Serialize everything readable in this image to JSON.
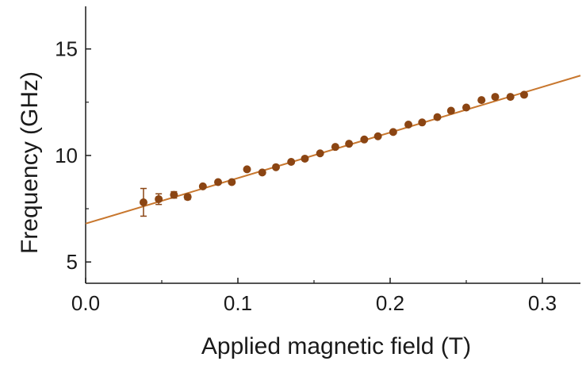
{
  "chart_data": {
    "type": "scatter",
    "xlabel": "Applied magnetic field (T)",
    "ylabel": "Frequency (GHz)",
    "xlim": [
      0.0,
      0.325
    ],
    "ylim": [
      4.0,
      17.0
    ],
    "xticks": [
      0.0,
      0.1,
      0.2,
      0.3
    ],
    "xtick_labels": [
      "0.0",
      "0.1",
      "0.2",
      "0.3"
    ],
    "yticks": [
      5,
      10,
      15
    ],
    "ytick_labels": [
      "5",
      "10",
      "15"
    ],
    "grid": false,
    "legend": "none",
    "colors": {
      "points": "#8b4513",
      "fit": "#c8772e",
      "axes": "#1a1a1a"
    },
    "series": [
      {
        "kind": "points",
        "x": [
          0.038,
          0.048,
          0.058,
          0.067,
          0.077,
          0.087,
          0.096,
          0.106,
          0.116,
          0.125,
          0.135,
          0.144,
          0.154,
          0.164,
          0.173,
          0.183,
          0.192,
          0.202,
          0.212,
          0.221,
          0.231,
          0.24,
          0.25,
          0.26,
          0.269,
          0.279,
          0.288
        ],
        "y": [
          7.8,
          7.95,
          8.15,
          8.05,
          8.55,
          8.75,
          8.75,
          9.35,
          9.2,
          9.45,
          9.7,
          9.85,
          10.1,
          10.4,
          10.55,
          10.75,
          10.9,
          11.1,
          11.45,
          11.55,
          11.8,
          12.1,
          12.25,
          12.6,
          12.75,
          12.75,
          12.85
        ],
        "err": [
          0.65,
          0.25,
          0.15,
          0.12,
          0,
          0,
          0,
          0,
          0,
          0,
          0,
          0,
          0,
          0,
          0,
          0,
          0,
          0,
          0,
          0,
          0,
          0,
          0,
          0,
          0,
          0,
          0
        ]
      },
      {
        "kind": "fit-line",
        "x": [
          0.0,
          0.325
        ],
        "y": [
          6.8,
          13.75
        ]
      }
    ]
  }
}
